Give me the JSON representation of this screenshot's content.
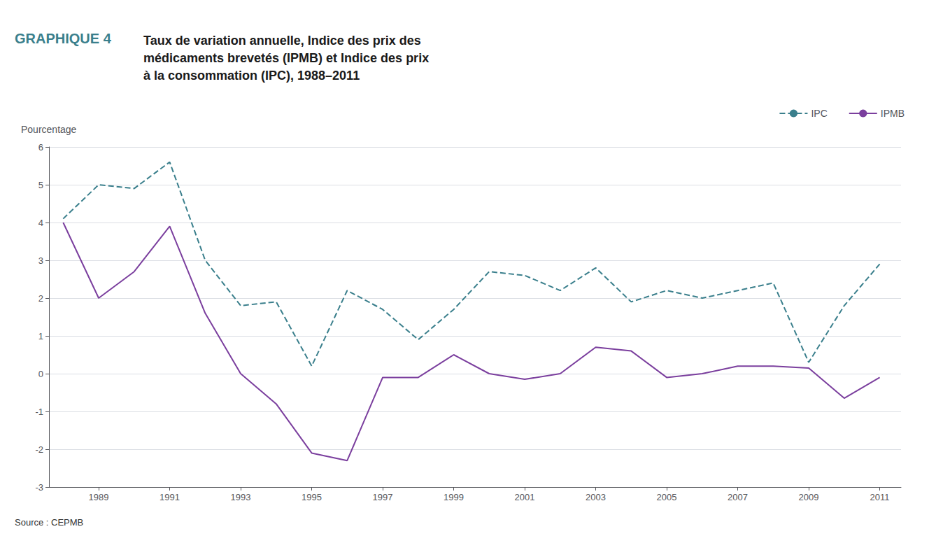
{
  "chart_data": {
    "type": "line",
    "title": "GRAPHIQUE 4",
    "subtitle": "Taux de variation annuelle, Indice des prix des\nmédicaments brevetés (IPMB) et Indice des prix\nà la consommation (IPC), 1988–2011",
    "y_label": "Pourcentage",
    "annotations": [
      "Source : CEPMB"
    ],
    "x": [
      1988,
      1989,
      1990,
      1991,
      1992,
      1993,
      1994,
      1995,
      1996,
      1997,
      1998,
      1999,
      2000,
      2001,
      2002,
      2003,
      2004,
      2005,
      2006,
      2007,
      2008,
      2009,
      2010,
      2011
    ],
    "series": [
      {
        "name": "IPC",
        "color": "#3a7f8c",
        "line_style": "dashed",
        "values": [
          4.1,
          5.0,
          4.9,
          5.6,
          3.0,
          1.8,
          1.9,
          0.2,
          2.2,
          1.7,
          0.9,
          1.7,
          2.7,
          2.6,
          2.2,
          2.8,
          1.9,
          2.2,
          2.0,
          2.2,
          2.4,
          0.3,
          1.8,
          2.9
        ]
      },
      {
        "name": "IPMB",
        "color": "#7b3f9e",
        "line_style": "solid",
        "values": [
          4.0,
          2.0,
          2.7,
          3.9,
          1.6,
          0.0,
          -0.8,
          -2.1,
          -2.3,
          -0.1,
          -0.1,
          0.5,
          0.0,
          -0.15,
          0.0,
          0.7,
          0.6,
          -0.1,
          0.0,
          0.2,
          0.2,
          0.15,
          -0.65,
          -0.1
        ]
      }
    ],
    "xlim": [
      1987.6,
      2011.6
    ],
    "xticks": [
      1989,
      1991,
      1993,
      1995,
      1997,
      1999,
      2001,
      2003,
      2005,
      2007,
      2009,
      2011
    ],
    "ylim": [
      -3,
      6
    ],
    "yticks": [
      -3,
      -2,
      -1,
      0,
      1,
      2,
      3,
      4,
      5,
      6
    ],
    "grid": true,
    "legend": "upper right"
  }
}
